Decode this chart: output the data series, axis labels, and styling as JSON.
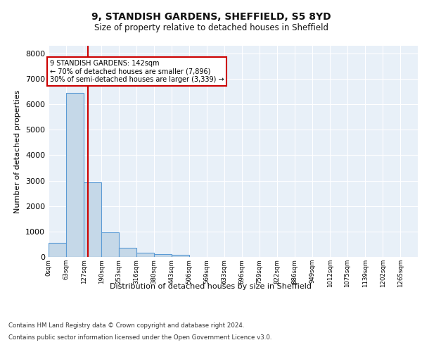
{
  "title1": "9, STANDISH GARDENS, SHEFFIELD, S5 8YD",
  "title2": "Size of property relative to detached houses in Sheffield",
  "xlabel": "Distribution of detached houses by size in Sheffield",
  "ylabel": "Number of detached properties",
  "bin_labels": [
    "0sqm",
    "63sqm",
    "127sqm",
    "190sqm",
    "253sqm",
    "316sqm",
    "380sqm",
    "443sqm",
    "506sqm",
    "569sqm",
    "633sqm",
    "696sqm",
    "759sqm",
    "822sqm",
    "886sqm",
    "949sqm",
    "1012sqm",
    "1075sqm",
    "1139sqm",
    "1202sqm",
    "1265sqm"
  ],
  "bin_edges": [
    0,
    63,
    127,
    190,
    253,
    316,
    380,
    443,
    506,
    569,
    633,
    696,
    759,
    822,
    886,
    949,
    1012,
    1075,
    1139,
    1202,
    1265
  ],
  "bar_heights": [
    560,
    6450,
    2920,
    980,
    360,
    170,
    115,
    90,
    0,
    0,
    0,
    0,
    0,
    0,
    0,
    0,
    0,
    0,
    0,
    0
  ],
  "bar_color": "#c5d8e8",
  "bar_edge_color": "#5b9bd5",
  "property_size": 142,
  "vline_color": "#cc0000",
  "annotation_line1": "9 STANDISH GARDENS: 142sqm",
  "annotation_line2": "← 70% of detached houses are smaller (7,896)",
  "annotation_line3": "30% of semi-detached houses are larger (3,339) →",
  "annotation_box_color": "#ffffff",
  "annotation_box_edge": "#cc0000",
  "ylim": [
    0,
    8300
  ],
  "yticks": [
    0,
    1000,
    2000,
    3000,
    4000,
    5000,
    6000,
    7000,
    8000
  ],
  "background_color": "#ffffff",
  "plot_bg_color": "#e8f0f8",
  "grid_color": "#ffffff",
  "footer_line1": "Contains HM Land Registry data © Crown copyright and database right 2024.",
  "footer_line2": "Contains public sector information licensed under the Open Government Licence v3.0."
}
